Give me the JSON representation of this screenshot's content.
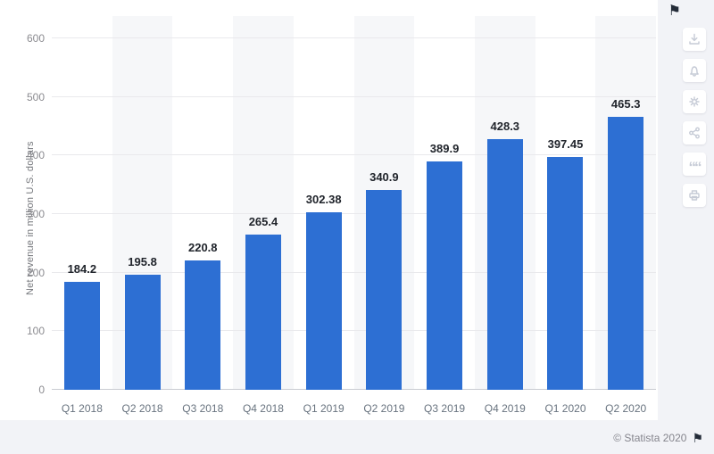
{
  "chart_data": {
    "type": "bar",
    "categories": [
      "Q1 2018",
      "Q2 2018",
      "Q3 2018",
      "Q4 2018",
      "Q1 2019",
      "Q2 2019",
      "Q3 2019",
      "Q4 2019",
      "Q1 2020",
      "Q2 2020"
    ],
    "values": [
      184.2,
      195.8,
      220.8,
      265.4,
      302.38,
      340.9,
      389.9,
      428.3,
      397.45,
      465.3
    ],
    "value_labels": [
      "184.2",
      "195.8",
      "220.8",
      "265.4",
      "302.38",
      "340.9",
      "389.9",
      "428.3",
      "397.45",
      "465.3"
    ],
    "title": "",
    "xlabel": "",
    "ylabel": "Net revenue in million U.S. dollars",
    "ylim": [
      0,
      600
    ],
    "yticks": [
      0,
      100,
      200,
      300,
      400,
      500,
      600
    ],
    "ytick_labels": [
      "0",
      "100",
      "200",
      "300",
      "400",
      "500",
      "600"
    ],
    "grid": "horizontal",
    "legend": "none",
    "bar_color": "#2d6fd3",
    "band_color": "#f6f7f9"
  },
  "toolbar": {
    "icons": [
      {
        "name": "download-icon"
      },
      {
        "name": "bell-icon"
      },
      {
        "name": "gear-icon"
      },
      {
        "name": "share-icon"
      },
      {
        "name": "quote-icon"
      },
      {
        "name": "print-icon"
      }
    ],
    "quote_glyph": "““"
  },
  "icons": {
    "flag_glyph": "⚑"
  },
  "footer": {
    "copyright": "© Statista 2020"
  }
}
